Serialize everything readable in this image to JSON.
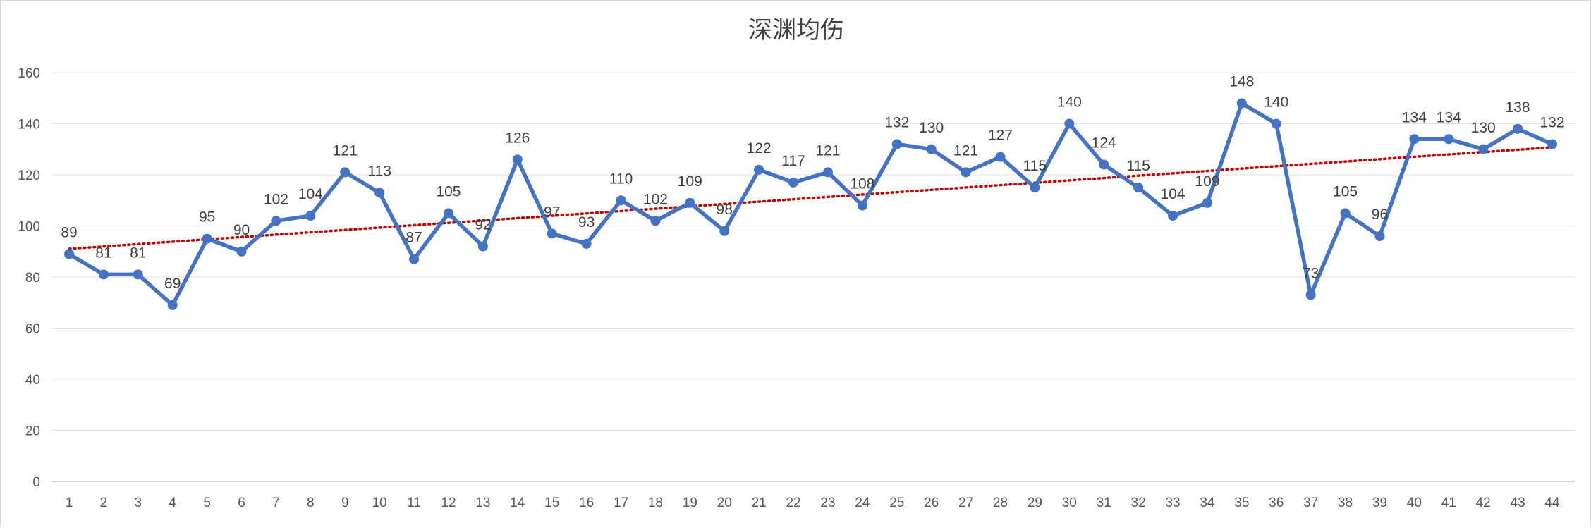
{
  "chart_data": {
    "type": "line",
    "title": "深渊均伤",
    "xlabel": "",
    "ylabel": "",
    "x": [
      1,
      2,
      3,
      4,
      5,
      6,
      7,
      8,
      9,
      10,
      11,
      12,
      13,
      14,
      15,
      16,
      17,
      18,
      19,
      20,
      21,
      22,
      23,
      24,
      25,
      26,
      27,
      28,
      29,
      30,
      31,
      32,
      33,
      34,
      35,
      36,
      37,
      38,
      39,
      40,
      41,
      42,
      43,
      44
    ],
    "ylim": [
      0,
      160
    ],
    "yticks": [
      0,
      20,
      40,
      60,
      80,
      100,
      120,
      140,
      160
    ],
    "grid": true,
    "legend": "none",
    "series": [
      {
        "color": "#4472c4",
        "values": [
          89,
          81,
          81,
          69,
          95,
          90,
          102,
          104,
          121,
          113,
          87,
          105,
          92,
          126,
          97,
          93,
          110,
          102,
          109,
          98,
          122,
          117,
          121,
          108,
          132,
          130,
          121,
          127,
          115,
          140,
          124,
          115,
          104,
          109,
          148,
          140,
          73,
          105,
          96,
          134,
          134,
          130,
          138,
          132
        ]
      }
    ],
    "trendline": {
      "type": "linear",
      "style": "dotted",
      "color": "#c00000"
    }
  }
}
